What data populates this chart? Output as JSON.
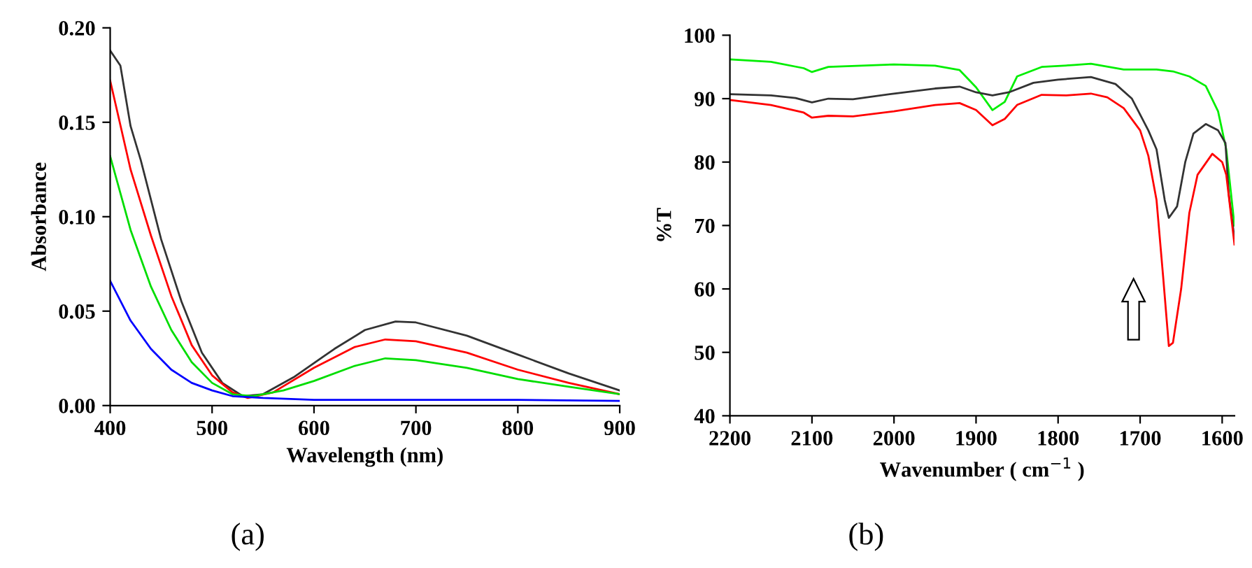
{
  "chart_data": [
    {
      "type": "line",
      "xlabel": "Wavelength (nm)",
      "ylabel": "Absorbance",
      "xlim": [
        400,
        900
      ],
      "xticks": [
        400,
        500,
        600,
        700,
        800,
        900
      ],
      "ylim": [
        0,
        0.2
      ],
      "yticks": [
        {
          "value": 0,
          "label": "0.00"
        },
        {
          "value": 0.05,
          "label": "0.05"
        },
        {
          "value": 0.1,
          "label": "0.10"
        },
        {
          "value": 0.15,
          "label": "0.15"
        },
        {
          "value": 0.2,
          "label": "0.20"
        }
      ],
      "grid": false,
      "annotations": [
        "(a)"
      ],
      "series": [
        {
          "color": "#333333",
          "x": [
            400,
            410,
            420,
            430,
            450,
            470,
            490,
            510,
            530,
            550,
            580,
            620,
            650,
            680,
            700,
            750,
            800,
            850,
            900
          ],
          "values": [
            0.188,
            0.18,
            0.148,
            0.13,
            0.088,
            0.055,
            0.028,
            0.012,
            0.005,
            0.006,
            0.015,
            0.03,
            0.04,
            0.0445,
            0.044,
            0.037,
            0.027,
            0.017,
            0.008
          ]
        },
        {
          "color": "#ff0000",
          "x": [
            400,
            420,
            440,
            460,
            480,
            500,
            520,
            535,
            560,
            600,
            640,
            670,
            700,
            750,
            800,
            850,
            900
          ],
          "values": [
            0.172,
            0.125,
            0.09,
            0.058,
            0.032,
            0.016,
            0.007,
            0.004,
            0.007,
            0.02,
            0.031,
            0.035,
            0.034,
            0.028,
            0.019,
            0.012,
            0.006
          ]
        },
        {
          "color": "#00dd00",
          "x": [
            400,
            420,
            440,
            460,
            480,
            500,
            520,
            540,
            570,
            600,
            640,
            670,
            700,
            750,
            800,
            850,
            900
          ],
          "values": [
            0.132,
            0.093,
            0.063,
            0.04,
            0.023,
            0.012,
            0.006,
            0.005,
            0.008,
            0.013,
            0.021,
            0.025,
            0.024,
            0.02,
            0.014,
            0.01,
            0.006
          ]
        },
        {
          "color": "#0000ff",
          "x": [
            400,
            420,
            440,
            460,
            480,
            500,
            520,
            550,
            600,
            700,
            800,
            900
          ],
          "values": [
            0.066,
            0.045,
            0.03,
            0.019,
            0.012,
            0.008,
            0.005,
            0.004,
            0.003,
            0.003,
            0.003,
            0.0025
          ]
        }
      ]
    },
    {
      "type": "line",
      "xlabel": "Wavenumber ( cm$^{−1}$ )",
      "ylabel": "%T",
      "xlim": [
        2200,
        1585
      ],
      "xticks": [
        2200,
        2100,
        2000,
        1900,
        1800,
        1700,
        1600
      ],
      "ylim": [
        40,
        100
      ],
      "yticks": [
        40,
        50,
        60,
        70,
        80,
        90,
        100
      ],
      "grid": false,
      "annotations": [
        "(b)"
      ],
      "series": [
        {
          "color": "#00ee00",
          "x": [
            2200,
            2150,
            2110,
            2100,
            2080,
            2000,
            1950,
            1920,
            1900,
            1880,
            1865,
            1850,
            1820,
            1780,
            1760,
            1720,
            1680,
            1660,
            1640,
            1620,
            1605,
            1595,
            1585
          ],
          "values": [
            96.2,
            95.8,
            94.8,
            94.2,
            95,
            95.4,
            95.2,
            94.5,
            91.8,
            88.2,
            89.5,
            93.5,
            95,
            95.3,
            95.5,
            94.6,
            94.6,
            94.3,
            93.5,
            92,
            88,
            82,
            70
          ]
        },
        {
          "color": "#333333",
          "x": [
            2200,
            2150,
            2120,
            2100,
            2080,
            2050,
            2000,
            1950,
            1920,
            1900,
            1880,
            1860,
            1830,
            1800,
            1760,
            1730,
            1710,
            1690,
            1680,
            1670,
            1665,
            1655,
            1645,
            1635,
            1620,
            1605,
            1596,
            1592,
            1585
          ],
          "values": [
            90.7,
            90.5,
            90.1,
            89.4,
            90,
            89.9,
            90.8,
            91.6,
            91.9,
            91,
            90.5,
            91,
            92.5,
            93,
            93.4,
            92.3,
            90,
            85,
            82,
            74,
            71.2,
            73,
            80,
            84.5,
            86,
            85,
            83,
            75,
            68
          ]
        },
        {
          "color": "#ff0000",
          "x": [
            2200,
            2150,
            2110,
            2100,
            2080,
            2050,
            2000,
            1950,
            1920,
            1900,
            1880,
            1865,
            1850,
            1820,
            1790,
            1760,
            1740,
            1720,
            1700,
            1690,
            1680,
            1672,
            1665,
            1660,
            1650,
            1640,
            1630,
            1612,
            1600,
            1595,
            1585
          ],
          "values": [
            89.8,
            89,
            87.8,
            87,
            87.3,
            87.2,
            88,
            89,
            89.3,
            88.2,
            85.8,
            86.8,
            89,
            90.6,
            90.5,
            90.8,
            90.2,
            88.5,
            85,
            81,
            74,
            62,
            51,
            51.5,
            60,
            72,
            78,
            81.3,
            80,
            78,
            67
          ]
        }
      ]
    }
  ]
}
